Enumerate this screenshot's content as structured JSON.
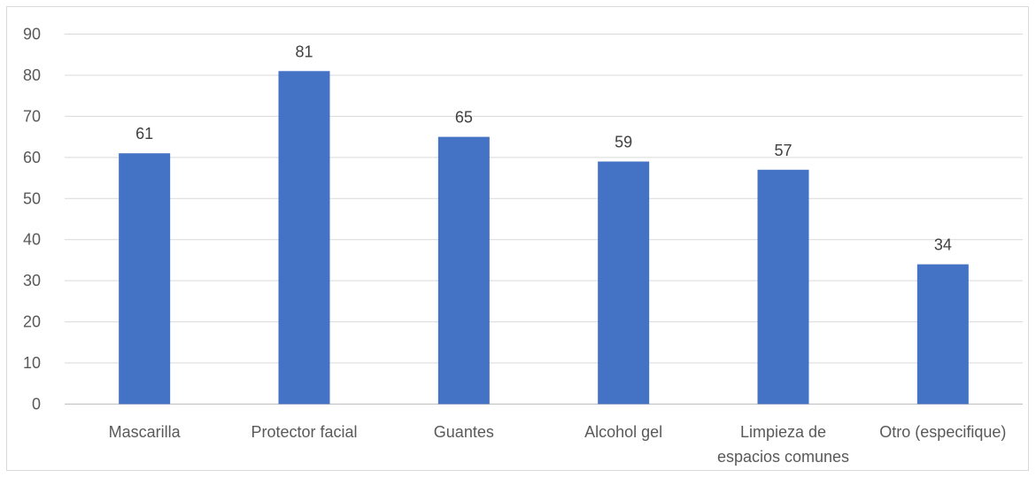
{
  "chart_data": {
    "type": "bar",
    "categories": [
      [
        "Mascarilla"
      ],
      [
        "Protector facial"
      ],
      [
        "Guantes"
      ],
      [
        "Alcohol gel"
      ],
      [
        "Limpieza de",
        "espacios comunes"
      ],
      [
        "Otro (especifique)"
      ]
    ],
    "values": [
      61,
      81,
      65,
      59,
      57,
      34
    ],
    "ylim": [
      0,
      90
    ],
    "yticks": [
      0,
      10,
      20,
      30,
      40,
      50,
      60,
      70,
      80,
      90
    ],
    "grid": true,
    "legend": "none",
    "colors": {
      "bar": "#4472c4",
      "grid": "#d9d9d9",
      "axis": "#bfbfbf"
    }
  }
}
